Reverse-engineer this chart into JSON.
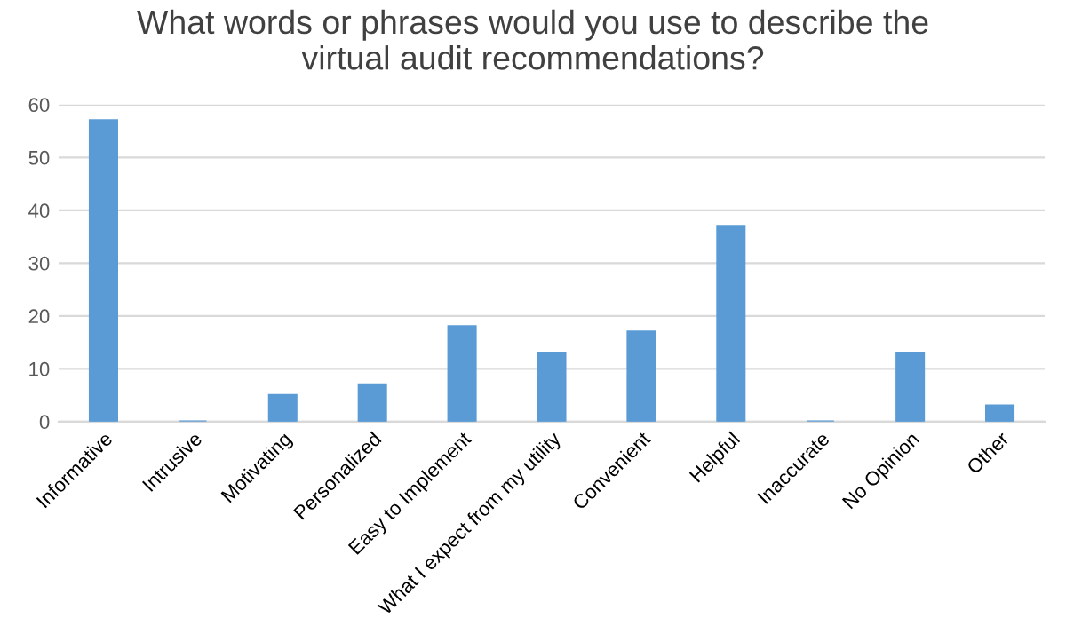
{
  "chart_data": {
    "type": "bar",
    "title": "What words or phrases would you use to describe the\nvirtual audit recommendations?",
    "categories": [
      "Informative",
      "Intrusive",
      "Motivating",
      "Personalized",
      "Easy to Implement",
      "What I expect from my utility",
      "Convenient",
      "Helpful",
      "Inaccurate",
      "No Opinion",
      "Other"
    ],
    "values": [
      57,
      0,
      5,
      7,
      18,
      13,
      17,
      37,
      0,
      13,
      3
    ],
    "color": "#5b9bd5",
    "ylim": [
      0,
      60
    ],
    "yticks": [
      0,
      10,
      20,
      30,
      40,
      50,
      60
    ],
    "grid": "y",
    "legend": false
  }
}
